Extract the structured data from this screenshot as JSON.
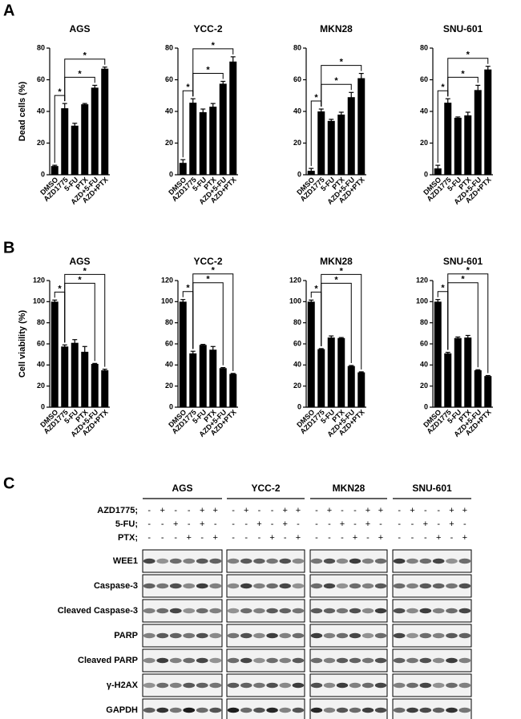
{
  "panel_labels": [
    "A",
    "B",
    "C"
  ],
  "chart_data": [
    {
      "type": "bar",
      "title": "AGS",
      "y_label": "Dead cells (%)",
      "categories": [
        "DMSO",
        "AZD1775",
        "5-FU",
        "PTX",
        "AZD+5-FU",
        "AZD+PTX"
      ],
      "values": [
        5.5,
        42,
        31,
        44.5,
        55,
        67
      ],
      "errors": [
        0.5,
        3,
        1.5,
        0.5,
        1.5,
        1
      ],
      "color": "#000000",
      "ylim": [
        0,
        80
      ],
      "yticks": [
        0,
        20,
        40,
        60,
        80
      ],
      "significance": [
        {
          "label": "*",
          "pair": [
            "DMSO",
            "AZD1775"
          ]
        },
        {
          "label": "*",
          "pair": [
            "AZD1775",
            "AZD+5-FU"
          ]
        },
        {
          "label": "*",
          "pair": [
            "AZD1775",
            "AZD+PTX"
          ]
        }
      ]
    },
    {
      "type": "bar",
      "title": "YCC-2",
      "categories": [
        "DMSO",
        "AZD1775",
        "5-FU",
        "PTX",
        "AZD+5-FU",
        "AZD+PTX"
      ],
      "values": [
        7.5,
        45.5,
        39.5,
        43,
        57.5,
        71.5
      ],
      "errors": [
        2,
        2.5,
        2,
        2,
        1.5,
        3
      ],
      "color": "#000000",
      "ylim": [
        0,
        80
      ],
      "yticks": [
        0,
        20,
        40,
        60,
        80
      ],
      "significance": [
        {
          "label": "*",
          "pair": [
            "DMSO",
            "AZD1775"
          ]
        },
        {
          "label": "*",
          "pair": [
            "AZD1775",
            "AZD+5-FU"
          ]
        },
        {
          "label": "*",
          "pair": [
            "AZD1775",
            "AZD+PTX"
          ]
        }
      ]
    },
    {
      "type": "bar",
      "title": "MKN28",
      "categories": [
        "DMSO",
        "AZD1775",
        "5-FU",
        "PTX",
        "AZD+5-FU",
        "AZD+PTX"
      ],
      "values": [
        2.5,
        40,
        34,
        38,
        49,
        61
      ],
      "errors": [
        1.5,
        1.5,
        1,
        1.5,
        3,
        3
      ],
      "color": "#000000",
      "ylim": [
        0,
        80
      ],
      "yticks": [
        0,
        20,
        40,
        60,
        80
      ],
      "significance": [
        {
          "label": "*",
          "pair": [
            "DMSO",
            "AZD1775"
          ]
        },
        {
          "label": "*",
          "pair": [
            "AZD1775",
            "AZD+5-FU"
          ]
        },
        {
          "label": "*",
          "pair": [
            "AZD1775",
            "AZD+PTX"
          ]
        }
      ]
    },
    {
      "type": "bar",
      "title": "SNU-601",
      "categories": [
        "DMSO",
        "AZD1775",
        "5-FU",
        "PTX",
        "AZD+5-FU",
        "AZD+PTX"
      ],
      "values": [
        4,
        45.5,
        36,
        37.5,
        53.5,
        66.5
      ],
      "errors": [
        2,
        2.5,
        0.5,
        2,
        3,
        2
      ],
      "color": "#000000",
      "ylim": [
        0,
        80
      ],
      "yticks": [
        0,
        20,
        40,
        60,
        80
      ],
      "significance": [
        {
          "label": "*",
          "pair": [
            "DMSO",
            "AZD1775"
          ]
        },
        {
          "label": "*",
          "pair": [
            "AZD1775",
            "AZD+5-FU"
          ]
        },
        {
          "label": "*",
          "pair": [
            "AZD1775",
            "AZD+PTX"
          ]
        }
      ]
    },
    {
      "type": "bar",
      "title": "AGS",
      "y_label": "Cell viability (%)",
      "categories": [
        "DMSO",
        "AZD1775",
        "5-FU",
        "PTX",
        "AZD+5-FU",
        "AZD+PTX"
      ],
      "values": [
        100,
        57.5,
        61,
        52.5,
        41,
        35
      ],
      "errors": [
        1.5,
        1.5,
        3,
        5,
        0.5,
        1
      ],
      "color": "#000000",
      "ylim": [
        0,
        120
      ],
      "yticks": [
        0,
        20,
        40,
        60,
        80,
        100,
        120
      ],
      "significance": [
        {
          "label": "*",
          "pair": [
            "DMSO",
            "AZD1775"
          ]
        },
        {
          "label": "*",
          "pair": [
            "AZD1775",
            "AZD+5-FU"
          ]
        },
        {
          "label": "*",
          "pair": [
            "AZD1775",
            "AZD+PTX"
          ]
        }
      ]
    },
    {
      "type": "bar",
      "title": "YCC-2",
      "categories": [
        "DMSO",
        "AZD1775",
        "5-FU",
        "PTX",
        "AZD+5-FU",
        "AZD+PTX"
      ],
      "values": [
        100,
        51,
        59,
        54.5,
        37,
        31.5
      ],
      "errors": [
        2,
        2,
        0.5,
        3,
        0.5,
        0.5
      ],
      "color": "#000000",
      "ylim": [
        0,
        120
      ],
      "yticks": [
        0,
        20,
        40,
        60,
        80,
        100,
        120
      ],
      "significance": [
        {
          "label": "*",
          "pair": [
            "DMSO",
            "AZD1775"
          ]
        },
        {
          "label": "*",
          "pair": [
            "AZD1775",
            "AZD+5-FU"
          ]
        },
        {
          "label": "*",
          "pair": [
            "AZD1775",
            "AZD+PTX"
          ]
        }
      ]
    },
    {
      "type": "bar",
      "title": "MKN28",
      "categories": [
        "DMSO",
        "AZD1775",
        "5-FU",
        "PTX",
        "AZD+5-FU",
        "AZD+PTX"
      ],
      "values": [
        100,
        55,
        66,
        65.5,
        39,
        33
      ],
      "errors": [
        1.5,
        0.5,
        1.5,
        0.5,
        0.5,
        0.5
      ],
      "color": "#000000",
      "ylim": [
        0,
        120
      ],
      "yticks": [
        0,
        20,
        40,
        60,
        80,
        100,
        120
      ],
      "significance": [
        {
          "label": "*",
          "pair": [
            "DMSO",
            "AZD1775"
          ]
        },
        {
          "label": "*",
          "pair": [
            "AZD1775",
            "AZD+5-FU"
          ]
        },
        {
          "label": "*",
          "pair": [
            "AZD1775",
            "AZD+PTX"
          ]
        }
      ]
    },
    {
      "type": "bar",
      "title": "SNU-601",
      "categories": [
        "DMSO",
        "AZD1775",
        "5-FU",
        "PTX",
        "AZD+5-FU",
        "AZD+PTX"
      ],
      "values": [
        100,
        51,
        65.5,
        66,
        35,
        29.5
      ],
      "errors": [
        2,
        1,
        1,
        2,
        0.5,
        0.5
      ],
      "color": "#000000",
      "ylim": [
        0,
        120
      ],
      "yticks": [
        0,
        20,
        40,
        60,
        80,
        100,
        120
      ],
      "significance": [
        {
          "label": "*",
          "pair": [
            "DMSO",
            "AZD1775"
          ]
        },
        {
          "label": "*",
          "pair": [
            "AZD1775",
            "AZD+5-FU"
          ]
        },
        {
          "label": "*",
          "pair": [
            "AZD1775",
            "AZD+PTX"
          ]
        }
      ]
    }
  ],
  "blot": {
    "cell_lines": [
      "AGS",
      "YCC-2",
      "MKN28",
      "SNU-601"
    ],
    "treatments": [
      {
        "label": "AZD1775;",
        "signs": [
          "-",
          "+",
          "-",
          "-",
          "+",
          "+"
        ]
      },
      {
        "label": "5-FU;",
        "signs": [
          "-",
          "-",
          "+",
          "-",
          "+",
          "-"
        ]
      },
      {
        "label": "PTX;",
        "signs": [
          "-",
          "-",
          "-",
          "+",
          "-",
          "+"
        ]
      }
    ],
    "proteins": [
      "WEE1",
      "Caspase-3",
      "Cleaved Caspase-3",
      "PARP",
      "Cleaved  PARP",
      "γ-H2AX",
      "GAPDH"
    ]
  }
}
